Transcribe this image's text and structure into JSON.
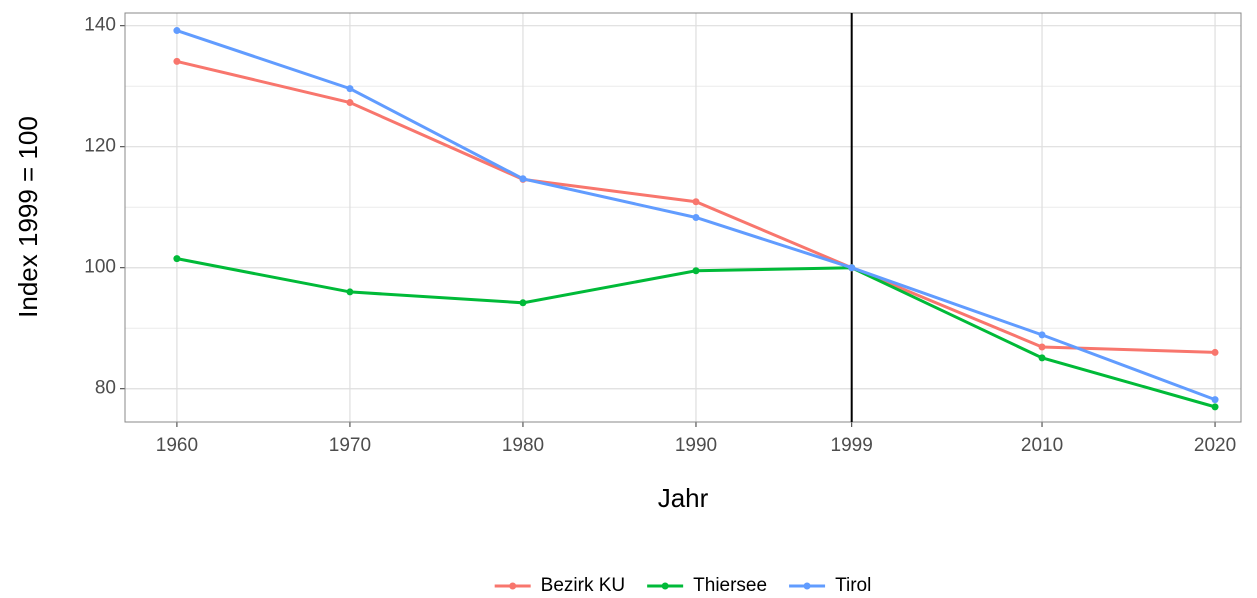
{
  "chart_data": {
    "type": "line",
    "x_label": "Jahr",
    "y_label": "Index 1999 = 100",
    "x": [
      1960,
      1970,
      1980,
      1990,
      1999,
      2010,
      2020
    ],
    "series": [
      {
        "name": "Bezirk KU",
        "color": "#F8766D",
        "values": [
          134.1,
          127.3,
          114.6,
          110.9,
          100,
          86.9,
          86.0
        ]
      },
      {
        "name": "Thiersee",
        "color": "#00BA38",
        "values": [
          101.5,
          96.0,
          94.2,
          99.5,
          100,
          85.1,
          77.0
        ]
      },
      {
        "name": "Tirol",
        "color": "#619CFF",
        "values": [
          139.2,
          129.6,
          114.7,
          108.3,
          100,
          88.9,
          78.2
        ]
      }
    ],
    "xlim": [
      1957,
      2021.5
    ],
    "xticks": [
      1960,
      1970,
      1980,
      1990,
      1999,
      2010,
      2020
    ],
    "ylim": [
      74.5,
      142.1
    ],
    "yticks": [
      80,
      100,
      120,
      140
    ],
    "yminor": [
      90,
      110,
      130
    ],
    "vline": 1999,
    "grid": true,
    "legend": "bottom"
  }
}
